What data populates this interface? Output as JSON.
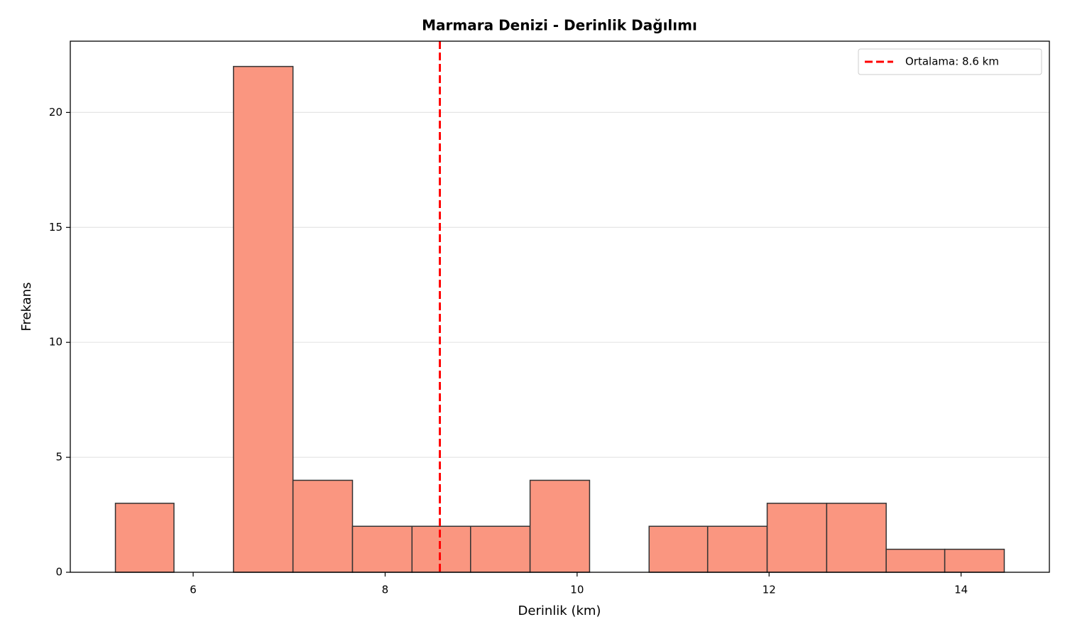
{
  "chart_data": {
    "type": "histogram",
    "title": "Marmara Denizi - Derinlik Dağılımı",
    "x_label": "Derinlik (km)",
    "y_label": "Frekans",
    "bins": [
      5.19,
      5.8,
      6.42,
      7.04,
      7.66,
      8.28,
      8.89,
      9.51,
      10.13,
      10.75,
      11.36,
      11.98,
      12.6,
      13.22,
      13.83,
      14.45
    ],
    "values": [
      3,
      0,
      22,
      4,
      2,
      2,
      2,
      4,
      0,
      2,
      2,
      3,
      3,
      1,
      1
    ],
    "color": "#fa9680",
    "xlim": [
      4.72,
      14.92
    ],
    "xticks": [
      6,
      8,
      10,
      12,
      14
    ],
    "ylim": [
      0,
      23.1
    ],
    "yticks": [
      0,
      5,
      10,
      15,
      20
    ],
    "grid": "y",
    "mean_line": {
      "value": 8.57,
      "label": "Ortalama: 8.6 km",
      "color": "#ff0000"
    },
    "legend": "upper right"
  }
}
